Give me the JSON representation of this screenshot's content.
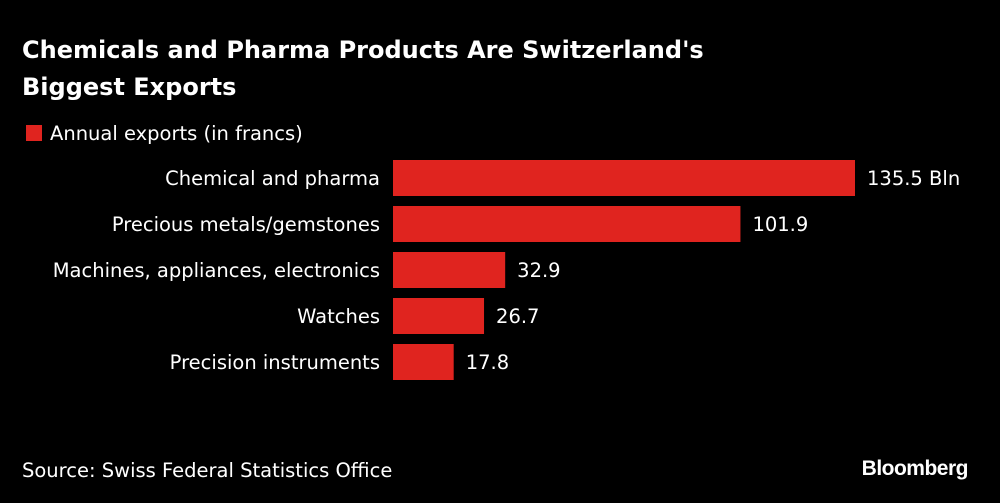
{
  "chart_data": {
    "type": "bar",
    "orientation": "horizontal",
    "title": "Chemicals and Pharma Products Are Switzerland's Biggest Exports",
    "title_lines": [
      "Chemicals and Pharma Products Are Switzerland's",
      "Biggest Exports"
    ],
    "legend": "Annual exports (in francs)",
    "categories": [
      "Chemical and pharma",
      "Precious metals/gemstones",
      "Machines, appliances, electronics",
      "Watches",
      "Precision instruments"
    ],
    "values": [
      135.5,
      101.9,
      32.9,
      26.7,
      17.8
    ],
    "value_labels": [
      "135.5 Bln",
      "101.9",
      "32.9",
      "26.7",
      "17.8"
    ],
    "unit": "Bln francs",
    "xlim": [
      0,
      135.5
    ],
    "grid": false,
    "bar_color": "#e0241f",
    "source": "Source: Swiss Federal Statistics Office",
    "brand": "Bloomberg"
  }
}
